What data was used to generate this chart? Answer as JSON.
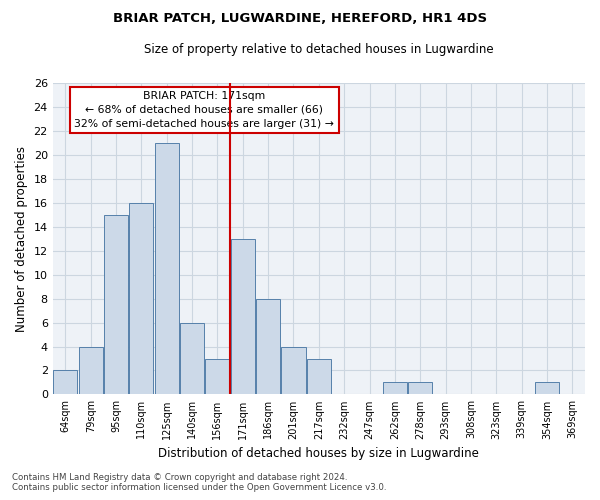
{
  "title": "BRIAR PATCH, LUGWARDINE, HEREFORD, HR1 4DS",
  "subtitle": "Size of property relative to detached houses in Lugwardine",
  "xlabel": "Distribution of detached houses by size in Lugwardine",
  "ylabel": "Number of detached properties",
  "bar_color": "#ccd9e8",
  "bar_edge_color": "#5580aa",
  "categories": [
    "64sqm",
    "79sqm",
    "95sqm",
    "110sqm",
    "125sqm",
    "140sqm",
    "156sqm",
    "171sqm",
    "186sqm",
    "201sqm",
    "217sqm",
    "232sqm",
    "247sqm",
    "262sqm",
    "278sqm",
    "293sqm",
    "308sqm",
    "323sqm",
    "339sqm",
    "354sqm",
    "369sqm"
  ],
  "values": [
    2,
    4,
    15,
    16,
    21,
    6,
    3,
    13,
    8,
    4,
    3,
    0,
    0,
    1,
    1,
    0,
    0,
    0,
    0,
    1,
    0
  ],
  "vline_index": 7,
  "vline_color": "#cc0000",
  "annotation_text": "BRIAR PATCH: 171sqm\n← 68% of detached houses are smaller (66)\n32% of semi-detached houses are larger (31) →",
  "ylim": [
    0,
    26
  ],
  "yticks": [
    0,
    2,
    4,
    6,
    8,
    10,
    12,
    14,
    16,
    18,
    20,
    22,
    24,
    26
  ],
  "grid_color": "#ccd6e0",
  "background_color": "#eef2f7",
  "footnote": "Contains HM Land Registry data © Crown copyright and database right 2024.\nContains public sector information licensed under the Open Government Licence v3.0.",
  "fig_width": 6.0,
  "fig_height": 5.0,
  "dpi": 100
}
